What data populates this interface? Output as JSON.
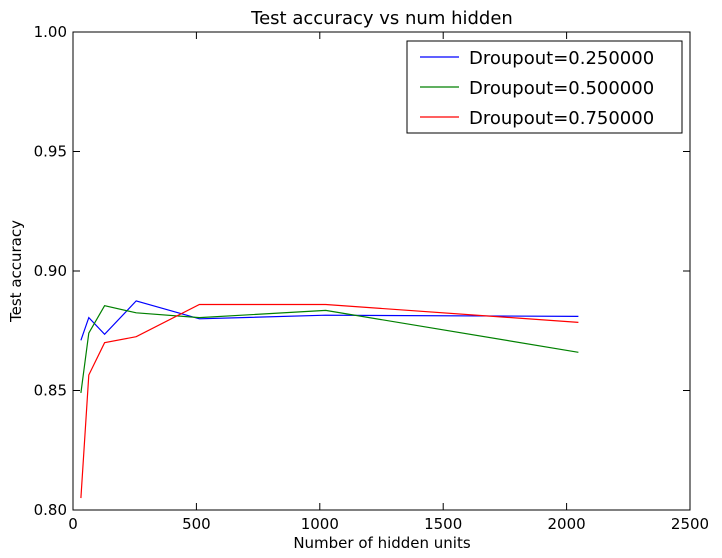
{
  "chart_data": {
    "type": "line",
    "title": "Test accuracy vs num hidden",
    "xlabel": "Number of hidden units",
    "ylabel": "Test accuracy",
    "xlim": [
      0,
      2500
    ],
    "ylim": [
      0.8,
      1.0
    ],
    "xticks": [
      0,
      500,
      1000,
      1500,
      2000,
      2500
    ],
    "yticks": [
      0.8,
      0.85,
      0.9,
      0.95,
      1.0
    ],
    "xtick_labels": [
      "0",
      "500",
      "1000",
      "1500",
      "2000",
      "2500"
    ],
    "ytick_labels": [
      "0.80",
      "0.85",
      "0.90",
      "0.95",
      "1.00"
    ],
    "grid": false,
    "legend_position": "top-right",
    "x": [
      32,
      64,
      128,
      256,
      512,
      1024,
      2048
    ],
    "series": [
      {
        "name": "Droupout=0.250000",
        "color": "#0000ff",
        "values": [
          0.871,
          0.8805,
          0.8735,
          0.8875,
          0.88,
          0.8815,
          0.881
        ]
      },
      {
        "name": "Droupout=0.500000",
        "color": "#008000",
        "values": [
          0.849,
          0.874,
          0.8855,
          0.8825,
          0.8805,
          0.8835,
          0.866
        ]
      },
      {
        "name": "Droupout=0.750000",
        "color": "#ff0000",
        "values": [
          0.805,
          0.8565,
          0.87,
          0.8725,
          0.886,
          0.886,
          0.8785
        ]
      }
    ]
  }
}
